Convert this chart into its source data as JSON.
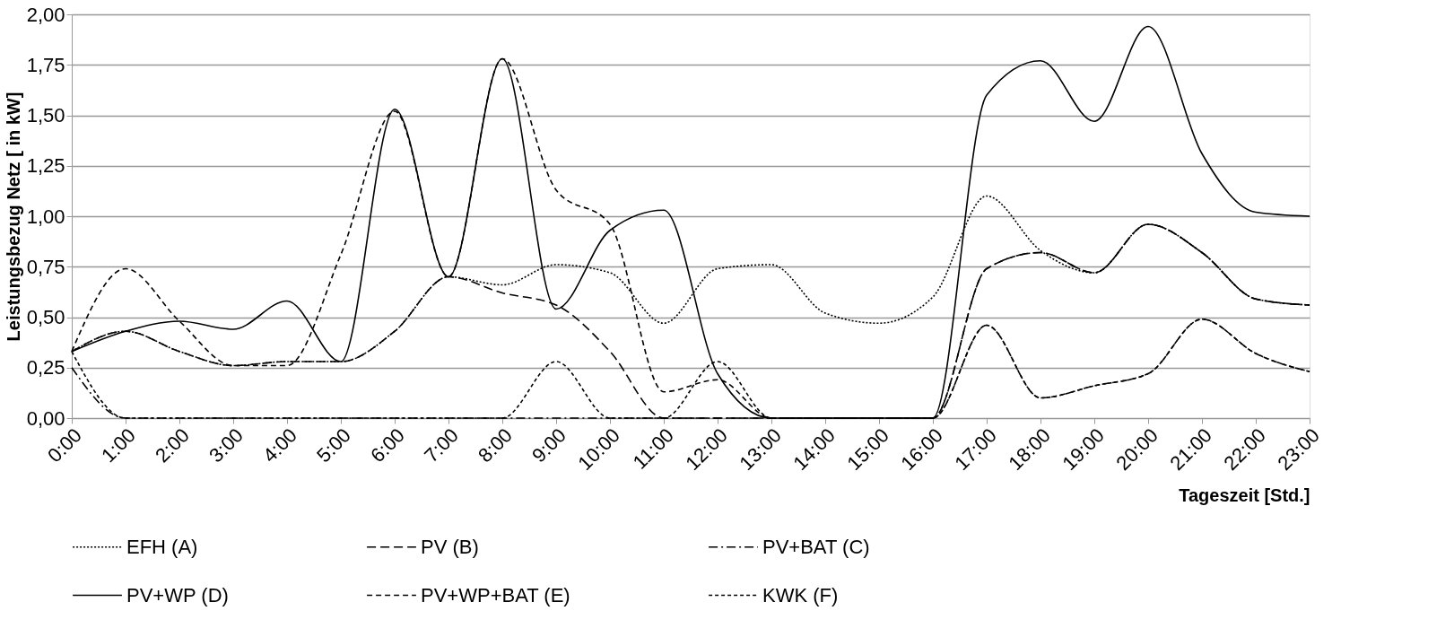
{
  "chart_data": {
    "type": "line",
    "xlabel": "Tageszeit [Std.]",
    "ylabel": "Leistungsbezug Netz [ in kW]",
    "categories": [
      "0:00",
      "1:00",
      "2:00",
      "3:00",
      "4:00",
      "5:00",
      "6:00",
      "7:00",
      "8:00",
      "9:00",
      "10:00",
      "11:00",
      "12:00",
      "13:00",
      "14:00",
      "15:00",
      "16:00",
      "17:00",
      "18:00",
      "19:00",
      "20:00",
      "21:00",
      "22:00",
      "23:00"
    ],
    "series": [
      {
        "name": "EFH (A)",
        "color": "#000000",
        "line_style": "dotted",
        "values": [
          0.33,
          0.43,
          0.33,
          0.26,
          0.28,
          0.28,
          0.43,
          0.7,
          0.66,
          0.76,
          0.72,
          0.47,
          0.74,
          0.76,
          0.52,
          0.47,
          0.6,
          1.1,
          0.83,
          0.72,
          0.96,
          0.82,
          0.59,
          0.56
        ]
      },
      {
        "name": "PV (B)",
        "color": "#000000",
        "line_style": "dashed",
        "values": [
          0.33,
          0.43,
          0.33,
          0.26,
          0.28,
          0.28,
          0.43,
          0.7,
          0.62,
          0.56,
          0.33,
          0,
          0,
          0,
          0,
          0,
          0,
          0.74,
          0.82,
          0.72,
          0.96,
          0.82,
          0.59,
          0.56
        ]
      },
      {
        "name": "PV+BAT (C)",
        "color": "#000000",
        "line_style": "dashdot",
        "values": [
          0.25,
          0,
          0,
          0,
          0,
          0,
          0,
          0,
          0,
          0,
          0,
          0,
          0,
          0,
          0,
          0,
          0,
          0.74,
          0.82,
          0.72,
          0.96,
          0.82,
          0.59,
          0.56
        ]
      },
      {
        "name": "PV+WP (D)",
        "color": "#000000",
        "line_style": "solid",
        "values": [
          0.33,
          0.43,
          0.48,
          0.44,
          0.58,
          0.28,
          1.53,
          0.7,
          1.78,
          0.54,
          0.93,
          1.03,
          0.22,
          0,
          0,
          0,
          0,
          1.6,
          1.77,
          1.47,
          1.94,
          1.31,
          1.02,
          1.0
        ]
      },
      {
        "name": "PV+WP+BAT (E)",
        "color": "#000000",
        "line_style": "dashed",
        "values": [
          0.33,
          0.74,
          0.48,
          0.26,
          0.26,
          0.81,
          1.52,
          0.7,
          1.78,
          1.13,
          0.96,
          0.13,
          0.19,
          0,
          0,
          0,
          0,
          0.46,
          0.1,
          0.16,
          0.22,
          0.49,
          0.32,
          0.23
        ]
      },
      {
        "name": "KWK (F)",
        "color": "#000000",
        "line_style": "dashed",
        "values": [
          0.33,
          0,
          0,
          0,
          0,
          0,
          0,
          0,
          0,
          0.28,
          0,
          0,
          0.28,
          0,
          0,
          0,
          0,
          0.46,
          0.1,
          0.16,
          0.22,
          0.49,
          0.32,
          0.23
        ]
      }
    ],
    "ylim": [
      0,
      2
    ],
    "yticks": [
      {
        "value": 0,
        "label": "0,00"
      },
      {
        "value": 0.25,
        "label": "0,25"
      },
      {
        "value": 0.5,
        "label": "0,50"
      },
      {
        "value": 0.75,
        "label": "0,75"
      },
      {
        "value": 1,
        "label": "1,00"
      },
      {
        "value": 1.25,
        "label": "1,25"
      },
      {
        "value": 1.5,
        "label": "1,50"
      },
      {
        "value": 1.75,
        "label": "1,75"
      },
      {
        "value": 2,
        "label": "2,00"
      }
    ],
    "grid": "y",
    "legend": "bottom",
    "marker": "none"
  }
}
